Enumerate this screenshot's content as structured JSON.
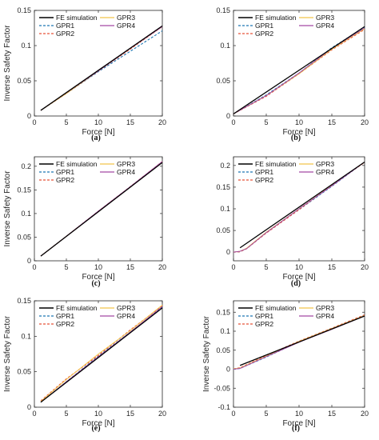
{
  "figure": {
    "series_styles": [
      {
        "name": "FE simulation",
        "color": "#000000",
        "dash": "",
        "width": 1.3
      },
      {
        "name": "GPR1",
        "color": "#1f77b4",
        "dash": "3,2",
        "width": 1.1
      },
      {
        "name": "GPR2",
        "color": "#e8543a",
        "dash": "3,2",
        "width": 1.1
      },
      {
        "name": "GPR3",
        "color": "#f2c44b",
        "dash": "",
        "width": 1.0
      },
      {
        "name": "GPR4",
        "color": "#a349a4",
        "dash": "",
        "width": 1.0
      }
    ]
  },
  "chart_data": [
    {
      "type": "line",
      "panel_label": "(a)",
      "xlabel": "Force [N]",
      "ylabel": "Inverse Safety Factor",
      "xlim": [
        0,
        20
      ],
      "ylim": [
        0,
        0.15
      ],
      "xticks": [
        0,
        5,
        10,
        15,
        20
      ],
      "yticks": [
        0,
        0.05,
        0.1,
        0.15
      ],
      "ytick_labels": [
        "0",
        "0.05",
        "0.1",
        "0.15"
      ],
      "legend": "top-left",
      "series": [
        {
          "name": "FE simulation",
          "x": [
            1,
            20
          ],
          "y": [
            0.008,
            0.128
          ]
        },
        {
          "name": "GPR1",
          "x": [
            1,
            5,
            10,
            15,
            20
          ],
          "y": [
            0.008,
            0.032,
            0.063,
            0.092,
            0.121
          ]
        },
        {
          "name": "GPR2",
          "x": [
            1,
            5,
            10,
            15,
            20
          ],
          "y": [
            0.008,
            0.032,
            0.064,
            0.095,
            0.127
          ]
        },
        {
          "name": "GPR3",
          "x": [
            1,
            5,
            10,
            15,
            20
          ],
          "y": [
            0.008,
            0.032,
            0.064,
            0.096,
            0.127
          ]
        },
        {
          "name": "GPR4",
          "x": [
            1,
            5,
            10,
            15,
            20
          ],
          "y": [
            0.008,
            0.033,
            0.064,
            0.096,
            0.127
          ]
        }
      ]
    },
    {
      "type": "line",
      "panel_label": "(b)",
      "xlabel": "Force [N]",
      "ylabel": "",
      "xlim": [
        0,
        20
      ],
      "ylim": [
        0,
        0.15
      ],
      "xticks": [
        0,
        5,
        10,
        15,
        20
      ],
      "yticks": [
        0,
        0.05,
        0.1,
        0.15
      ],
      "ytick_labels": [
        "0",
        "0.05",
        "0.1",
        "0.15"
      ],
      "legend": "top-left",
      "series": [
        {
          "name": "FE simulation",
          "x": [
            0,
            20
          ],
          "y": [
            0.003,
            0.127
          ]
        },
        {
          "name": "GPR1",
          "x": [
            0,
            5,
            10,
            15,
            20
          ],
          "y": [
            0.003,
            0.03,
            0.061,
            0.097,
            0.126
          ]
        },
        {
          "name": "GPR2",
          "x": [
            0,
            5,
            10,
            15,
            20
          ],
          "y": [
            0.003,
            0.028,
            0.06,
            0.094,
            0.123
          ]
        },
        {
          "name": "GPR3",
          "x": [
            0,
            5,
            10,
            15,
            20
          ],
          "y": [
            0.003,
            0.029,
            0.06,
            0.095,
            0.124
          ]
        },
        {
          "name": "GPR4",
          "x": [
            0,
            5,
            10,
            15,
            20
          ],
          "y": [
            0.003,
            0.029,
            0.061,
            0.096,
            0.125
          ]
        }
      ]
    },
    {
      "type": "line",
      "panel_label": "(c)",
      "xlabel": "Force [N]",
      "ylabel": "Inverse Safety Factor",
      "xlim": [
        0,
        20
      ],
      "ylim": [
        0,
        0.22
      ],
      "xticks": [
        0,
        5,
        10,
        15,
        20
      ],
      "yticks": [
        0,
        0.05,
        0.1,
        0.15,
        0.2
      ],
      "ytick_labels": [
        "0",
        "0.05",
        "0.1",
        "0.15",
        "0.2"
      ],
      "legend": "top-left",
      "series": [
        {
          "name": "FE simulation",
          "x": [
            1,
            20
          ],
          "y": [
            0.01,
            0.208
          ]
        },
        {
          "name": "GPR1",
          "x": [
            1,
            5,
            10,
            15,
            20
          ],
          "y": [
            0.01,
            0.052,
            0.104,
            0.156,
            0.209
          ]
        },
        {
          "name": "GPR2",
          "x": [
            1,
            5,
            10,
            15,
            20
          ],
          "y": [
            0.01,
            0.052,
            0.105,
            0.157,
            0.21
          ]
        },
        {
          "name": "GPR3",
          "x": [
            1,
            5,
            10,
            15,
            20
          ],
          "y": [
            0.01,
            0.052,
            0.104,
            0.156,
            0.209
          ]
        },
        {
          "name": "GPR4",
          "x": [
            1,
            5,
            10,
            15,
            20
          ],
          "y": [
            0.01,
            0.052,
            0.105,
            0.157,
            0.21
          ]
        }
      ]
    },
    {
      "type": "line",
      "panel_label": "(d)",
      "xlabel": "Force [N]",
      "ylabel": "",
      "xlim": [
        0,
        20
      ],
      "ylim": [
        -0.02,
        0.22
      ],
      "xticks": [
        0,
        5,
        10,
        15,
        20
      ],
      "yticks": [
        0,
        0.05,
        0.1,
        0.15,
        0.2
      ],
      "ytick_labels": [
        "0",
        "0.05",
        "0.1",
        "0.15",
        "0.2"
      ],
      "legend": "top-left",
      "series": [
        {
          "name": "FE simulation",
          "x": [
            1,
            20
          ],
          "y": [
            0.01,
            0.208
          ]
        },
        {
          "name": "GPR1",
          "x": [
            0,
            1,
            2,
            5,
            10,
            15,
            20
          ],
          "y": [
            0.0,
            0.001,
            0.008,
            0.045,
            0.098,
            0.152,
            0.208
          ]
        },
        {
          "name": "GPR2",
          "x": [
            0,
            1,
            2,
            5,
            10,
            15,
            20
          ],
          "y": [
            0.0,
            0.001,
            0.008,
            0.044,
            0.098,
            0.155,
            0.207
          ]
        },
        {
          "name": "GPR3",
          "x": [
            0,
            1,
            2,
            5,
            10,
            15,
            20
          ],
          "y": [
            0.0,
            0.002,
            0.009,
            0.046,
            0.1,
            0.154,
            0.208
          ]
        },
        {
          "name": "GPR4",
          "x": [
            0,
            1,
            2,
            5,
            10,
            15,
            20
          ],
          "y": [
            0.0,
            0.002,
            0.008,
            0.045,
            0.1,
            0.153,
            0.208
          ]
        }
      ]
    },
    {
      "type": "line",
      "panel_label": "(e)",
      "xlabel": "Force [N]",
      "ylabel": "Inverse Safety Factor",
      "xlim": [
        0,
        20
      ],
      "ylim": [
        0,
        0.15
      ],
      "xticks": [
        0,
        5,
        10,
        15,
        20
      ],
      "yticks": [
        0,
        0.05,
        0.1,
        0.15
      ],
      "ytick_labels": [
        "0",
        "0.05",
        "0.1",
        "0.15"
      ],
      "legend": "top-left",
      "series": [
        {
          "name": "FE simulation",
          "x": [
            1,
            20
          ],
          "y": [
            0.007,
            0.14
          ]
        },
        {
          "name": "GPR1",
          "x": [
            1,
            5,
            10,
            15,
            20
          ],
          "y": [
            0.007,
            0.036,
            0.072,
            0.106,
            0.141
          ]
        },
        {
          "name": "GPR2",
          "x": [
            1,
            5,
            10,
            15,
            20
          ],
          "y": [
            0.009,
            0.04,
            0.073,
            0.109,
            0.143
          ]
        },
        {
          "name": "GPR3",
          "x": [
            1,
            5,
            10,
            15,
            20
          ],
          "y": [
            0.008,
            0.039,
            0.075,
            0.108,
            0.144
          ]
        },
        {
          "name": "GPR4",
          "x": [
            1,
            5,
            10,
            15,
            20
          ],
          "y": [
            0.007,
            0.036,
            0.071,
            0.106,
            0.142
          ]
        }
      ]
    },
    {
      "type": "line",
      "panel_label": "(f)",
      "xlabel": "Force [N]",
      "ylabel": "Inverse Safety Factor",
      "xlim": [
        0,
        20
      ],
      "ylim": [
        -0.1,
        0.18
      ],
      "xticks": [
        0,
        5,
        10,
        15,
        20
      ],
      "yticks": [
        -0.1,
        -0.05,
        0,
        0.05,
        0.1,
        0.15
      ],
      "ytick_labels": [
        "-0.1",
        "-0.05",
        "0",
        "0.05",
        "0.1",
        "0.15"
      ],
      "legend": "top-left",
      "series": [
        {
          "name": "FE simulation",
          "x": [
            1,
            20
          ],
          "y": [
            0.01,
            0.14
          ]
        },
        {
          "name": "GPR1",
          "x": [
            0,
            1,
            5,
            10,
            15,
            20
          ],
          "y": [
            0.0,
            0.002,
            0.032,
            0.072,
            0.106,
            0.142
          ]
        },
        {
          "name": "GPR2",
          "x": [
            0,
            1,
            5,
            10,
            15,
            20
          ],
          "y": [
            0.001,
            0.004,
            0.036,
            0.074,
            0.108,
            0.143
          ]
        },
        {
          "name": "GPR3",
          "x": [
            0,
            1,
            5,
            10,
            15,
            20
          ],
          "y": [
            0.001,
            0.003,
            0.034,
            0.073,
            0.107,
            0.141
          ]
        },
        {
          "name": "GPR4",
          "x": [
            0,
            1,
            5,
            10,
            15,
            20
          ],
          "y": [
            0.0,
            0.002,
            0.033,
            0.071,
            0.105,
            0.14
          ]
        }
      ]
    }
  ]
}
